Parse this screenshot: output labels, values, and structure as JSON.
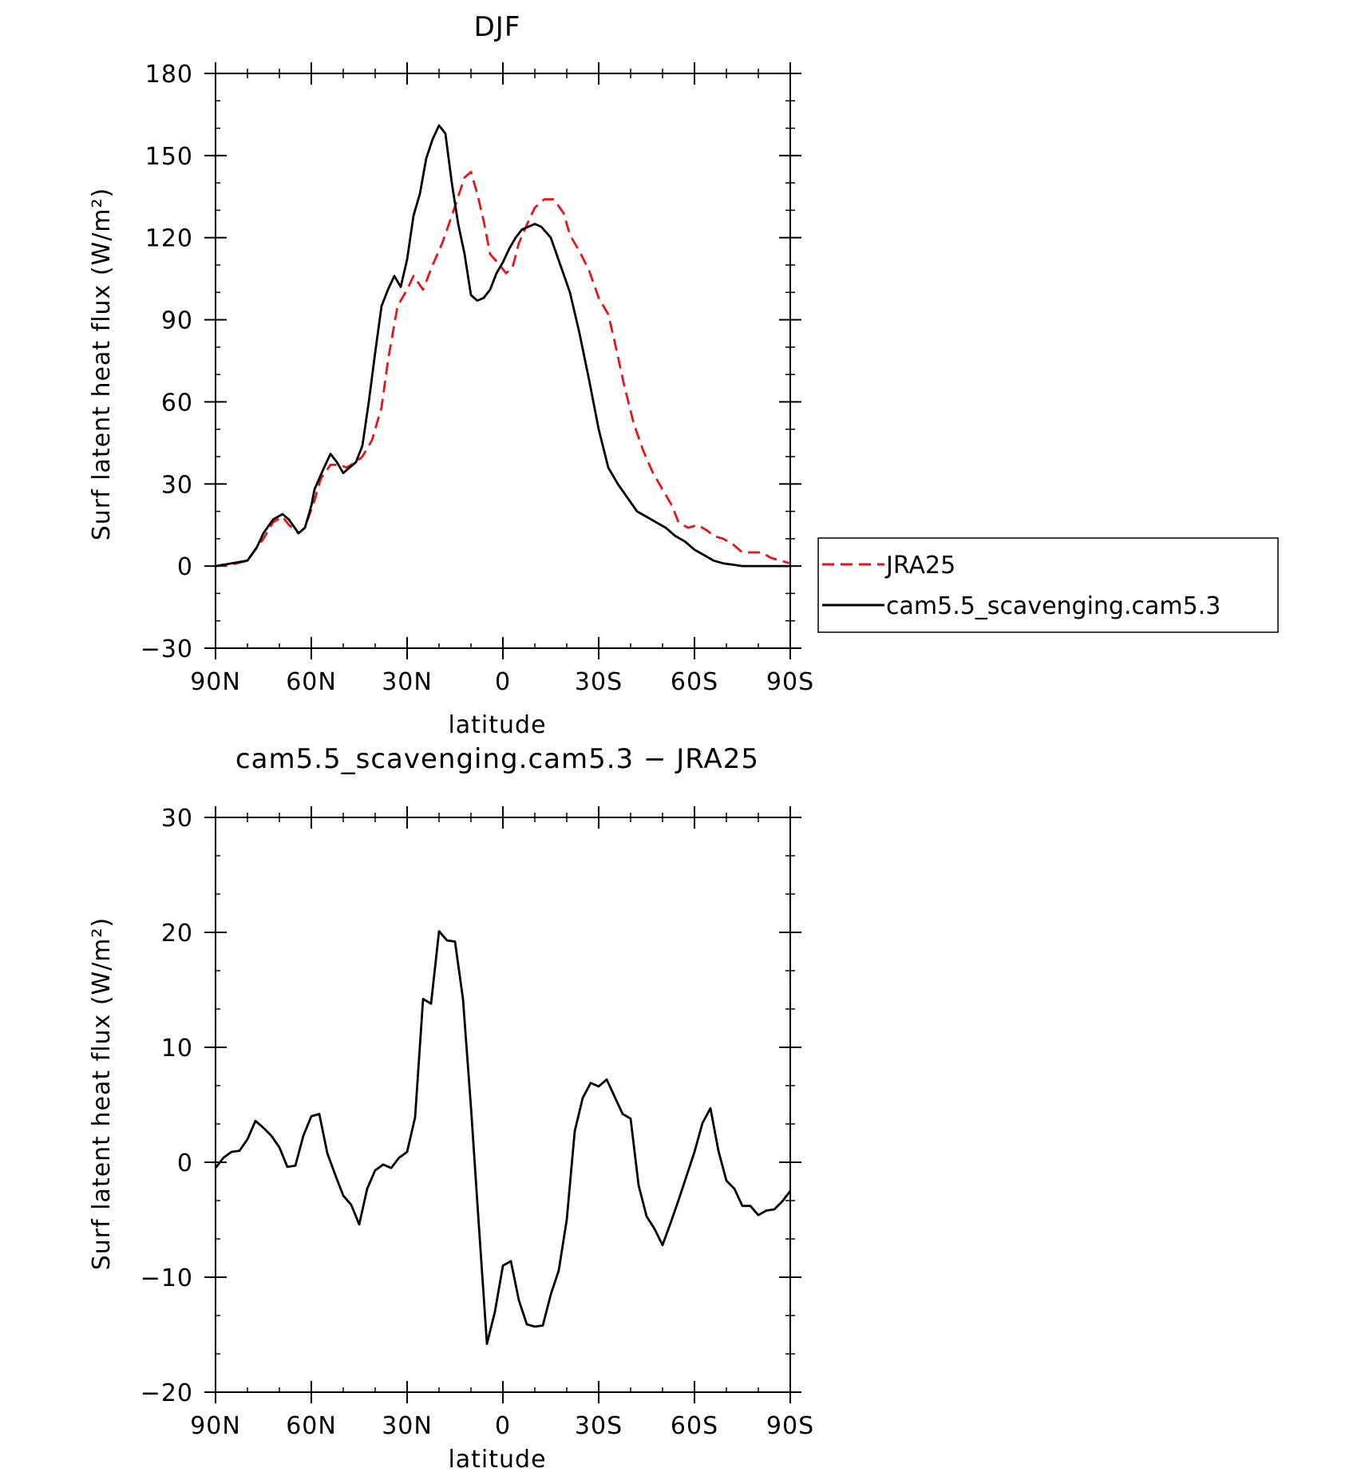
{
  "chart_data": [
    {
      "type": "line",
      "title": "DJF",
      "xlabel": "latitude",
      "ylabel": "Surf latent heat flux (W/m²)",
      "xlim": [
        90,
        -90
      ],
      "ylim": [
        -30,
        180
      ],
      "xticks": [
        90,
        60,
        30,
        0,
        -30,
        -60,
        -90
      ],
      "xtick_labels": [
        "90N",
        "60N",
        "30N",
        "0",
        "30S",
        "60S",
        "90S"
      ],
      "yticks": [
        -30,
        0,
        30,
        60,
        90,
        120,
        150,
        180
      ],
      "ytick_labels": [
        "−30",
        "0",
        "30",
        "60",
        "90",
        "120",
        "150",
        "180"
      ],
      "legend_position": "right",
      "series": [
        {
          "name": "JRA25",
          "color": "#e8141a",
          "dash": true,
          "x": [
            90,
            85,
            80,
            75,
            72,
            69,
            67,
            64,
            62,
            59,
            57,
            54,
            51,
            49,
            46,
            44,
            41,
            38,
            36,
            33,
            30,
            28,
            25,
            22,
            19,
            16,
            14,
            12,
            10,
            8,
            6,
            4,
            1,
            -1,
            -3,
            -5,
            -8,
            -10,
            -13,
            -16,
            -19,
            -21,
            -24,
            -27,
            -30,
            -33,
            -35,
            -38,
            -41,
            -44,
            -47,
            -50,
            -53,
            -55,
            -58,
            -61,
            -64,
            -66,
            -69,
            -72,
            -75,
            -78,
            -81,
            -84,
            -87,
            -90
          ],
          "y": [
            0,
            0.5,
            2,
            10,
            16,
            18,
            15,
            12,
            14,
            24,
            32,
            37,
            37,
            36,
            38,
            40,
            46,
            58,
            75,
            95,
            101,
            106,
            101,
            110,
            118,
            128,
            135,
            142,
            144,
            136,
            126,
            114,
            110,
            107,
            109,
            118,
            126,
            131,
            134,
            134,
            129,
            121,
            115,
            108,
            98,
            92,
            82,
            66,
            52,
            42,
            34,
            28,
            22,
            16,
            14,
            15,
            13,
            11,
            10,
            8,
            5,
            5,
            5,
            3,
            2,
            1
          ]
        },
        {
          "name": "cam5.5_scavenging.cam5.3",
          "color": "#000000",
          "dash": false,
          "x": [
            90,
            85,
            80,
            77,
            75,
            72,
            69,
            67,
            64,
            62,
            60,
            59,
            56,
            54,
            52,
            50,
            48,
            46,
            44,
            42,
            40,
            38,
            36,
            34,
            32,
            30,
            28,
            26,
            24,
            22,
            20,
            18,
            16,
            14,
            12,
            10,
            8,
            6,
            4,
            2,
            0,
            -2,
            -4,
            -6,
            -8,
            -10,
            -12,
            -15,
            -18,
            -21,
            -24,
            -27,
            -30,
            -33,
            -36,
            -39,
            -42,
            -45,
            -48,
            -51,
            -54,
            -57,
            -60,
            -63,
            -66,
            -69,
            -72,
            -75,
            -78,
            -81,
            -84,
            -87,
            -90
          ],
          "y": [
            0,
            1,
            2,
            7,
            12,
            17,
            19,
            17,
            12,
            14,
            22,
            28,
            36,
            41,
            38,
            34,
            36,
            38,
            44,
            60,
            78,
            95,
            101,
            106,
            102,
            112,
            128,
            136,
            149,
            156,
            161,
            158,
            140,
            125,
            114,
            99,
            97,
            98,
            101,
            107,
            111,
            116,
            120,
            123,
            124,
            125,
            124,
            120,
            110,
            100,
            85,
            68,
            50,
            36,
            30,
            25,
            20,
            18,
            16,
            14,
            11,
            9,
            6,
            4,
            2,
            1,
            0.5,
            0,
            0,
            0,
            0,
            0,
            0
          ]
        }
      ]
    },
    {
      "type": "line",
      "title": "cam5.5_scavenging.cam5.3 − JRA25",
      "xlabel": "latitude",
      "ylabel": "Surf latent heat flux (W/m²)",
      "xlim": [
        90,
        -90
      ],
      "ylim": [
        -20,
        30
      ],
      "xticks": [
        90,
        60,
        30,
        0,
        -30,
        -60,
        -90
      ],
      "xtick_labels": [
        "90N",
        "60N",
        "30N",
        "0",
        "30S",
        "60S",
        "90S"
      ],
      "yticks": [
        -20,
        -10,
        0,
        10,
        20,
        30
      ],
      "ytick_labels": [
        "−20",
        "−10",
        "0",
        "10",
        "20",
        "30"
      ],
      "series": [
        {
          "color": "#000000",
          "dash": false,
          "x": [
            90,
            87.5,
            85,
            82.5,
            80,
            77.5,
            75,
            72.5,
            70,
            67.5,
            65,
            62.5,
            60,
            57.5,
            55,
            52.5,
            50,
            47.5,
            45,
            42.5,
            40,
            37.5,
            35,
            32.5,
            30,
            27.5,
            25,
            22.5,
            20,
            17.5,
            15,
            12.5,
            10,
            7.5,
            5,
            2.5,
            0,
            -2.5,
            -5,
            -7.5,
            -10,
            -12.5,
            -15,
            -17.5,
            -20,
            -22.5,
            -25,
            -27.5,
            -30,
            -32.5,
            -35,
            -37.5,
            -40,
            -42.5,
            -45,
            -47.5,
            -50,
            -52.5,
            -55,
            -57.5,
            -60,
            -62.5,
            -65,
            -67.5,
            -70,
            -72.5,
            -75,
            -77.5,
            -80,
            -82.5,
            -85,
            -87.5,
            -90
          ],
          "y": [
            -0.5,
            0.4,
            0.9,
            1.0,
            2.0,
            3.6,
            3.0,
            2.3,
            1.3,
            -0.4,
            -0.3,
            2.3,
            4.0,
            4.2,
            0.8,
            -1.1,
            -2.9,
            -3.7,
            -5.4,
            -2.3,
            -0.7,
            -0.2,
            -0.5,
            0.4,
            0.9,
            3.9,
            14.2,
            13.8,
            20.1,
            19.3,
            19.2,
            14.2,
            4.8,
            -5.6,
            -15.8,
            -13.0,
            -9.0,
            -8.6,
            -12.0,
            -14.1,
            -14.3,
            -14.2,
            -11.5,
            -9.4,
            -5.0,
            2.7,
            5.6,
            6.9,
            6.6,
            7.2,
            5.7,
            4.2,
            3.8,
            -2.0,
            -4.7,
            -5.8,
            -7.2,
            -5.3,
            -3.3,
            -1.2,
            0.9,
            3.4,
            4.7,
            1.0,
            -1.6,
            -2.3,
            -3.8,
            -3.8,
            -4.6,
            -4.2,
            -4.1,
            -3.4,
            -2.5
          ]
        }
      ]
    }
  ]
}
